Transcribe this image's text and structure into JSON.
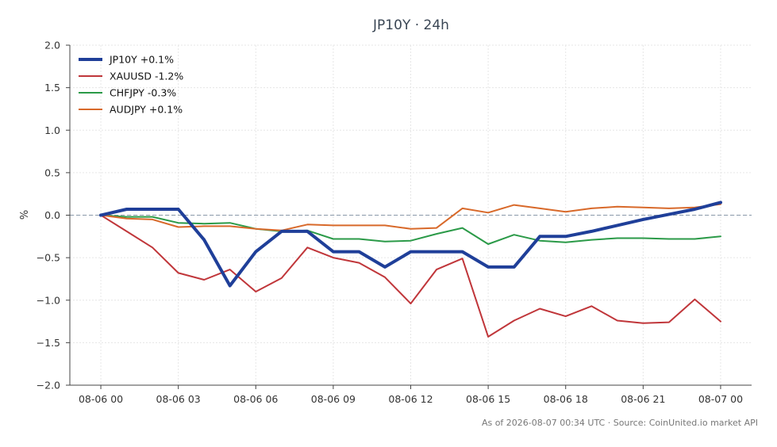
{
  "chart_data": {
    "type": "line",
    "title": "JP10Y · 24h",
    "xlabel": "",
    "ylabel": "%",
    "ylim": [
      -2.0,
      2.0
    ],
    "yticks": [
      2.0,
      1.5,
      1.0,
      0.5,
      0.0,
      -0.5,
      -1.0,
      -1.5,
      -2.0
    ],
    "ytick_labels": [
      "2.0",
      "1.5",
      "1.0",
      "0.5",
      "0.0",
      "−0.5",
      "−1.0",
      "−1.5",
      "−2.0"
    ],
    "xlim": [
      -1.2,
      25.2
    ],
    "xticks": [
      0,
      3,
      6,
      9,
      12,
      15,
      18,
      21,
      24
    ],
    "xtick_labels": [
      "08-06 00",
      "08-06 03",
      "08-06 06",
      "08-06 09",
      "08-06 12",
      "08-06 15",
      "08-06 18",
      "08-06 21",
      "08-07 00"
    ],
    "x": [
      0,
      1,
      2,
      3,
      4,
      5,
      6,
      7,
      8,
      9,
      10,
      11,
      12,
      13,
      14,
      15,
      16,
      17,
      18,
      19,
      20,
      21,
      22,
      23,
      24
    ],
    "grid": true,
    "zero_line": true,
    "legend_position": "top-left",
    "series": [
      {
        "name": "JP10Y +0.1%",
        "color": "#1f3f99",
        "width": 4,
        "values": [
          0.0,
          0.07,
          0.07,
          0.07,
          -0.29,
          -0.83,
          -0.43,
          -0.19,
          -0.19,
          -0.43,
          -0.43,
          -0.61,
          -0.43,
          -0.43,
          -0.43,
          -0.61,
          -0.61,
          -0.25,
          -0.25,
          -0.19,
          -0.12,
          -0.05,
          0.01,
          0.07,
          0.15
        ]
      },
      {
        "name": "XAUUSD -1.2%",
        "color": "#c0363a",
        "width": 2,
        "values": [
          0.0,
          -0.19,
          -0.38,
          -0.68,
          -0.76,
          -0.64,
          -0.9,
          -0.74,
          -0.38,
          -0.5,
          -0.56,
          -0.73,
          -1.04,
          -0.64,
          -0.51,
          -1.43,
          -1.24,
          -1.1,
          -1.19,
          -1.07,
          -1.24,
          -1.27,
          -1.26,
          -0.99,
          -1.25
        ]
      },
      {
        "name": "CHFJPY -0.3%",
        "color": "#2b9a48",
        "width": 2,
        "values": [
          0.0,
          -0.02,
          -0.02,
          -0.09,
          -0.1,
          -0.09,
          -0.16,
          -0.19,
          -0.18,
          -0.28,
          -0.28,
          -0.31,
          -0.3,
          -0.22,
          -0.15,
          -0.34,
          -0.23,
          -0.3,
          -0.32,
          -0.29,
          -0.27,
          -0.27,
          -0.28,
          -0.28,
          -0.25
        ]
      },
      {
        "name": "AUDJPY +0.1%",
        "color": "#d8692a",
        "width": 2,
        "values": [
          0.0,
          -0.04,
          -0.05,
          -0.14,
          -0.13,
          -0.13,
          -0.16,
          -0.18,
          -0.11,
          -0.12,
          -0.12,
          -0.12,
          -0.16,
          -0.15,
          0.08,
          0.03,
          0.12,
          0.08,
          0.04,
          0.08,
          0.1,
          0.09,
          0.08,
          0.09,
          0.13
        ]
      }
    ]
  },
  "footer": "As of 2026-08-07 00:34 UTC · Source: CoinUnited.io market API"
}
